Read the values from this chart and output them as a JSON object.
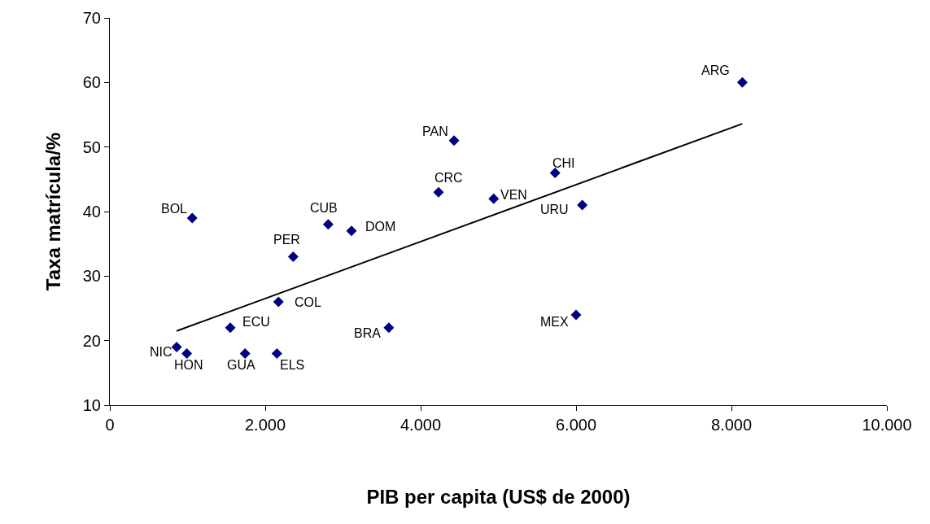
{
  "chart_data": {
    "type": "scatter",
    "xlabel": "PIB per capita (US$ de 2000)",
    "ylabel": "Taxa matrícula/%",
    "xlim": [
      0,
      10000
    ],
    "xticks": [
      {
        "value": 0,
        "label": "0"
      },
      {
        "value": 2000,
        "label": "2.000"
      },
      {
        "value": 4000,
        "label": "4.000"
      },
      {
        "value": 6000,
        "label": "6.000"
      },
      {
        "value": 8000,
        "label": "8.000"
      },
      {
        "value": 10000,
        "label": "10.000"
      }
    ],
    "ylim": [
      10,
      70
    ],
    "yticks": [
      10,
      20,
      30,
      40,
      50,
      60,
      70
    ],
    "grid": false,
    "marker": "diamond",
    "series": [
      {
        "color": "#000080",
        "x": [
          8140,
          4430,
          5730,
          4230,
          4940,
          6080,
          1060,
          2810,
          3110,
          2360,
          2170,
          1550,
          3590,
          6000,
          860,
          990,
          1740,
          2150
        ],
        "values": [
          60,
          51,
          46,
          43,
          42,
          41,
          39,
          38,
          37,
          33,
          26,
          22,
          22,
          24,
          19,
          18,
          18,
          18
        ]
      },
      {
        "type": "line",
        "color": "#000000",
        "marker": "none",
        "x": [
          860,
          8140
        ],
        "values": [
          21.5,
          53.6
        ]
      }
    ],
    "annotations": [
      {
        "text": "ARG",
        "x": 8140,
        "y": 60
      },
      {
        "text": "PAN",
        "x": 4430,
        "y": 51
      },
      {
        "text": "CHI",
        "x": 5730,
        "y": 46
      },
      {
        "text": "CRC",
        "x": 4230,
        "y": 43
      },
      {
        "text": "VEN",
        "x": 4940,
        "y": 42
      },
      {
        "text": "URU",
        "x": 6080,
        "y": 41
      },
      {
        "text": "BOL",
        "x": 1060,
        "y": 39
      },
      {
        "text": "CUB",
        "x": 2810,
        "y": 38
      },
      {
        "text": "DOM",
        "x": 3110,
        "y": 37
      },
      {
        "text": "PER",
        "x": 2360,
        "y": 33
      },
      {
        "text": "COL",
        "x": 2170,
        "y": 26
      },
      {
        "text": "ECU",
        "x": 1550,
        "y": 22
      },
      {
        "text": "BRA",
        "x": 3590,
        "y": 22
      },
      {
        "text": "MEX",
        "x": 6000,
        "y": 24
      },
      {
        "text": "NIC",
        "x": 860,
        "y": 19
      },
      {
        "text": "HON",
        "x": 990,
        "y": 18
      },
      {
        "text": "GUA",
        "x": 1740,
        "y": 18
      },
      {
        "text": "ELS",
        "x": 2150,
        "y": 18
      }
    ]
  }
}
